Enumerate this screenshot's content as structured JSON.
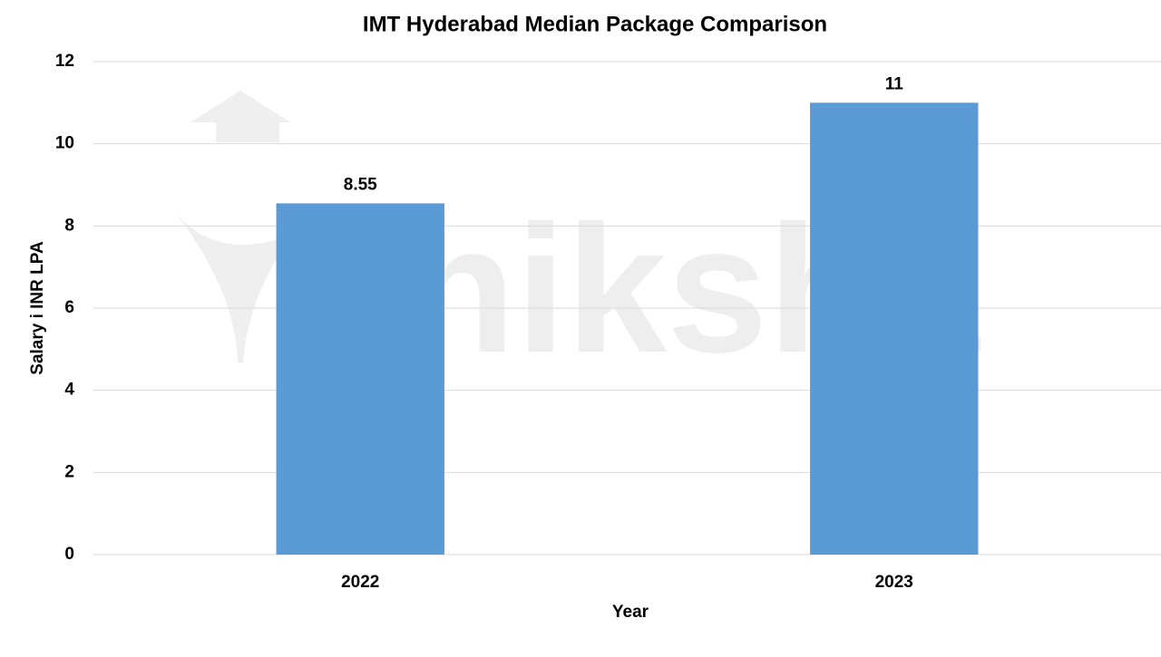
{
  "chart_data": {
    "type": "bar",
    "title": "IMT Hyderabad Median Package Comparison",
    "watermark": "shiksha",
    "xlabel": "Year",
    "ylabel": "Salary i INR LPA",
    "categories": [
      "2022",
      "2023"
    ],
    "values": [
      8.55,
      11
    ],
    "color": "#5b9bd5",
    "ylim": [
      0,
      12
    ],
    "yticks": [
      0,
      2,
      4,
      6,
      8,
      10,
      12
    ],
    "grid": true
  }
}
